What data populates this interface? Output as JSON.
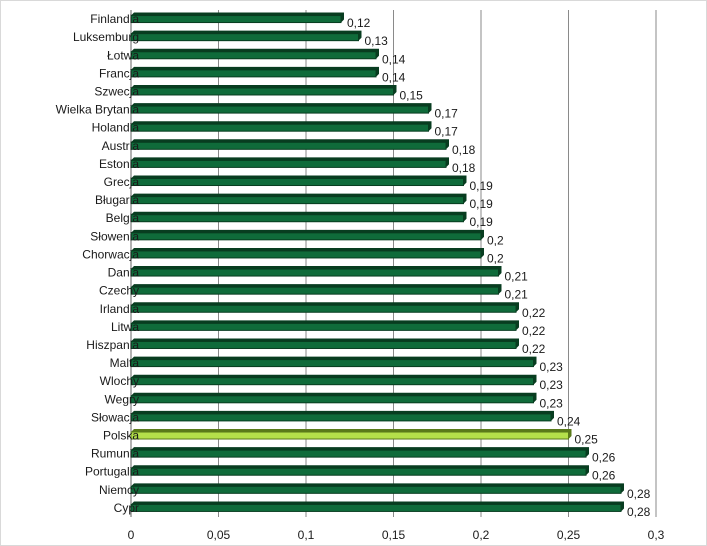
{
  "chart_data": {
    "type": "bar",
    "orientation": "horizontal",
    "title": "",
    "xlabel": "",
    "ylabel": "",
    "xlim": [
      0,
      0.3
    ],
    "x_ticks": [
      "0",
      "0,05",
      "0,1",
      "0,15",
      "0,2",
      "0,25",
      "0,3"
    ],
    "grid": "vertical",
    "legend": "none",
    "categories": [
      "Finlandia",
      "Luksemburg",
      "Łotwa",
      "Francja",
      "Szwecja",
      "Wielka Brytania",
      "Holandia",
      "Austria",
      "Estonia",
      "Grecja",
      "Bługaria",
      "Belgia",
      "Słowenia",
      "Chorwacja",
      "Dania",
      "Czechy",
      "Irlandia",
      "Litwa",
      "Hiszpania",
      "Malta",
      "Wlochy",
      "Wegry",
      "Słowacja",
      "Polska",
      "Rumunia",
      "Portugalia",
      "Niemcy",
      "Cypr"
    ],
    "values": [
      0.12,
      0.13,
      0.14,
      0.14,
      0.15,
      0.17,
      0.17,
      0.18,
      0.18,
      0.19,
      0.19,
      0.19,
      0.2,
      0.2,
      0.21,
      0.21,
      0.22,
      0.22,
      0.22,
      0.23,
      0.23,
      0.23,
      0.24,
      0.25,
      0.26,
      0.26,
      0.28,
      0.28
    ],
    "value_labels": [
      "0,12",
      "0,13",
      "0,14",
      "0,14",
      "0,15",
      "0,17",
      "0,17",
      "0,18",
      "0,18",
      "0,19",
      "0,19",
      "0,19",
      "0,2",
      "0,2",
      "0,21",
      "0,21",
      "0,22",
      "0,22",
      "0,22",
      "0,23",
      "0,23",
      "0,23",
      "0,24",
      "0,25",
      "0,26",
      "0,26",
      "0,28",
      "0,28"
    ],
    "highlight_category": "Polska",
    "colors": {
      "bar": "#0f6b3a",
      "bar_edge": "#083d20",
      "highlight": "#b4e04a",
      "highlight_edge": "#5a7a1a",
      "grid": "#8a8a8a",
      "axis": "#666666"
    }
  }
}
